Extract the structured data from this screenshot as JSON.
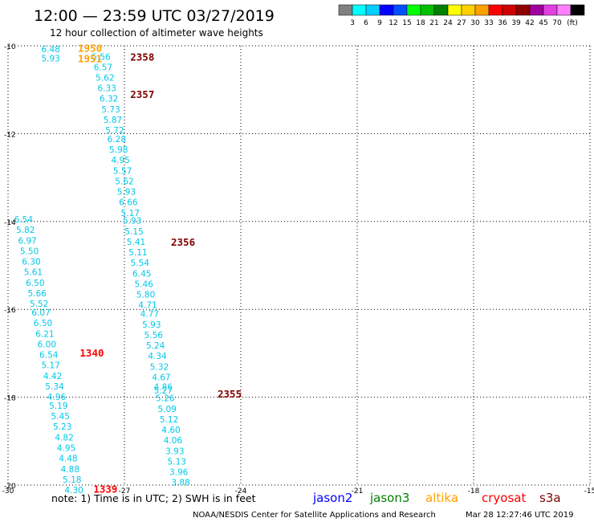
{
  "header": {
    "title": "12:00 — 23:59 UTC 03/27/2019",
    "subtitle": "12 hour collection of altimeter wave heights"
  },
  "colorbar": {
    "colors": [
      "#808080",
      "#00ffff",
      "#00d0ff",
      "#0000ff",
      "#0050ff",
      "#00ff00",
      "#00c000",
      "#008000",
      "#ffff00",
      "#ffd000",
      "#ffa000",
      "#ff0000",
      "#d00000",
      "#900000",
      "#a000a0",
      "#e040e0",
      "#ff80ff",
      "#000000"
    ],
    "labels": [
      "3",
      "6",
      "9",
      "12",
      "15",
      "18",
      "21",
      "24",
      "27",
      "30",
      "33",
      "36",
      "39",
      "42",
      "45",
      "70"
    ],
    "unit": "(ft)"
  },
  "footer": {
    "note": "note:  1) Time is in UTC;  2) SWH is in feet",
    "credit": "NOAA/NESDIS Center for Satellite Applications and Research",
    "timestamp": "Mar 28 12:27:46 UTC 2019",
    "satellites": [
      {
        "name": "jason2",
        "color": "#0000ff"
      },
      {
        "name": "jason3",
        "color": "#008000"
      },
      {
        "name": "altika",
        "color": "#ffa000"
      },
      {
        "name": "cryosat",
        "color": "#ff0000"
      },
      {
        "name": "s3a",
        "color": "#800000"
      }
    ]
  },
  "chart_data": {
    "type": "scatter",
    "title": "12:00 — 23:59 UTC 03/27/2019",
    "subtitle": "12 hour collection of altimeter wave heights",
    "xlabel": "",
    "ylabel": "",
    "xlim": [
      -30,
      -15
    ],
    "ylim": [
      -20,
      -10
    ],
    "x_ticks": [
      -30,
      -27,
      -24,
      -21,
      -18,
      -15
    ],
    "y_ticks": [
      -10,
      -12,
      -14,
      -16,
      -18,
      -20
    ],
    "grid": true,
    "value_color": "#00c8e8",
    "tracks": [
      {
        "lon": -28.9,
        "lat": -10.07,
        "swh": "6.48"
      },
      {
        "lon": -28.9,
        "lat": -10.28,
        "swh": "5.93"
      },
      {
        "lon": -27.6,
        "lat": -10.25,
        "swh": "5.56"
      },
      {
        "lon": -27.55,
        "lat": -10.48,
        "swh": "6.57"
      },
      {
        "lon": -27.5,
        "lat": -10.72,
        "swh": "5.62"
      },
      {
        "lon": -27.45,
        "lat": -10.96,
        "swh": "6.33"
      },
      {
        "lon": -27.4,
        "lat": -11.2,
        "swh": "6.32"
      },
      {
        "lon": -27.35,
        "lat": -11.44,
        "swh": "5.73"
      },
      {
        "lon": -27.3,
        "lat": -11.68,
        "swh": "5.87"
      },
      {
        "lon": -27.25,
        "lat": -11.92,
        "swh": "5.72"
      },
      {
        "lon": -27.2,
        "lat": -12.12,
        "swh": "6.28"
      },
      {
        "lon": -27.15,
        "lat": -12.36,
        "swh": "5.98"
      },
      {
        "lon": -27.1,
        "lat": -12.6,
        "swh": "4.95"
      },
      {
        "lon": -27.05,
        "lat": -12.84,
        "swh": "5.57"
      },
      {
        "lon": -27.0,
        "lat": -13.08,
        "swh": "5.62"
      },
      {
        "lon": -26.95,
        "lat": -13.32,
        "swh": "5.93"
      },
      {
        "lon": -26.9,
        "lat": -13.56,
        "swh": "6.66"
      },
      {
        "lon": -26.85,
        "lat": -13.8,
        "swh": "5.17"
      },
      {
        "lon": -26.8,
        "lat": -13.98,
        "swh": "5.93"
      },
      {
        "lon": -26.75,
        "lat": -14.22,
        "swh": "5.15"
      },
      {
        "lon": -26.7,
        "lat": -14.46,
        "swh": "5.41"
      },
      {
        "lon": -26.65,
        "lat": -14.7,
        "swh": "5.11"
      },
      {
        "lon": -26.6,
        "lat": -14.94,
        "swh": "5.54"
      },
      {
        "lon": -26.55,
        "lat": -15.18,
        "swh": "6.45"
      },
      {
        "lon": -26.5,
        "lat": -15.42,
        "swh": "5.46"
      },
      {
        "lon": -26.45,
        "lat": -15.66,
        "swh": "5.80"
      },
      {
        "lon": -26.4,
        "lat": -15.9,
        "swh": "4.71"
      },
      {
        "lon": -26.35,
        "lat": -16.1,
        "swh": "4.77"
      },
      {
        "lon": -26.3,
        "lat": -16.34,
        "swh": "5.93"
      },
      {
        "lon": -26.25,
        "lat": -16.58,
        "swh": "5.56"
      },
      {
        "lon": -26.2,
        "lat": -16.82,
        "swh": "5.24"
      },
      {
        "lon": -26.15,
        "lat": -17.06,
        "swh": "4.34"
      },
      {
        "lon": -26.1,
        "lat": -17.3,
        "swh": "5.32"
      },
      {
        "lon": -26.05,
        "lat": -17.54,
        "swh": "4.67"
      },
      {
        "lon": -26.0,
        "lat": -17.76,
        "swh": "4.86"
      },
      {
        "lon": -26.0,
        "lat": -17.84,
        "swh": "5.27"
      },
      {
        "lon": -25.95,
        "lat": -18.02,
        "swh": "5.26"
      },
      {
        "lon": -25.9,
        "lat": -18.26,
        "swh": "5.09"
      },
      {
        "lon": -25.85,
        "lat": -18.5,
        "swh": "5.12"
      },
      {
        "lon": -25.8,
        "lat": -18.74,
        "swh": "4.60"
      },
      {
        "lon": -25.75,
        "lat": -18.98,
        "swh": "4.06"
      },
      {
        "lon": -25.7,
        "lat": -19.22,
        "swh": "3.93"
      },
      {
        "lon": -25.65,
        "lat": -19.46,
        "swh": "5.13"
      },
      {
        "lon": -25.6,
        "lat": -19.7,
        "swh": "3.96"
      },
      {
        "lon": -25.55,
        "lat": -19.94,
        "swh": "3.88"
      },
      {
        "lon": -29.6,
        "lat": -13.95,
        "swh": "6.54"
      },
      {
        "lon": -29.55,
        "lat": -14.19,
        "swh": "5.82"
      },
      {
        "lon": -29.5,
        "lat": -14.43,
        "swh": "6.97"
      },
      {
        "lon": -29.45,
        "lat": -14.67,
        "swh": "5.50"
      },
      {
        "lon": -29.4,
        "lat": -14.91,
        "swh": "6.30"
      },
      {
        "lon": -29.35,
        "lat": -15.15,
        "swh": "5.61"
      },
      {
        "lon": -29.3,
        "lat": -15.39,
        "swh": "6.50"
      },
      {
        "lon": -29.25,
        "lat": -15.63,
        "swh": "5.66"
      },
      {
        "lon": -29.2,
        "lat": -15.87,
        "swh": "5.52"
      },
      {
        "lon": -29.15,
        "lat": -16.07,
        "swh": "6.07"
      },
      {
        "lon": -29.1,
        "lat": -16.31,
        "swh": "6.50"
      },
      {
        "lon": -29.05,
        "lat": -16.55,
        "swh": "6.21"
      },
      {
        "lon": -29.0,
        "lat": -16.79,
        "swh": "6.00"
      },
      {
        "lon": -28.95,
        "lat": -17.03,
        "swh": "6.54"
      },
      {
        "lon": -28.9,
        "lat": -17.27,
        "swh": "5.17"
      },
      {
        "lon": -28.85,
        "lat": -17.51,
        "swh": "4.42"
      },
      {
        "lon": -28.8,
        "lat": -17.75,
        "swh": "5.34"
      },
      {
        "lon": -28.75,
        "lat": -17.99,
        "swh": "4.96"
      },
      {
        "lon": -28.7,
        "lat": -18.19,
        "swh": "5.19"
      },
      {
        "lon": -28.65,
        "lat": -18.43,
        "swh": "5.45"
      },
      {
        "lon": -28.6,
        "lat": -18.67,
        "swh": "5.23"
      },
      {
        "lon": -28.55,
        "lat": -18.91,
        "swh": "4.82"
      },
      {
        "lon": -28.5,
        "lat": -19.15,
        "swh": "4.95"
      },
      {
        "lon": -28.45,
        "lat": -19.39,
        "swh": "4.48"
      },
      {
        "lon": -28.4,
        "lat": -19.63,
        "swh": "4.88"
      },
      {
        "lon": -28.35,
        "lat": -19.87,
        "swh": "5.18"
      },
      {
        "lon": -28.3,
        "lat": -20.11,
        "swh": "4.30"
      }
    ],
    "time_labels": [
      {
        "lon": -28.2,
        "lat": -10.05,
        "text": "1950",
        "color": "#ffa000"
      },
      {
        "lon": -28.2,
        "lat": -10.28,
        "text": "1951",
        "color": "#ffa000"
      },
      {
        "lon": -26.85,
        "lat": -10.25,
        "text": "2358",
        "color": "#800000"
      },
      {
        "lon": -26.85,
        "lat": -11.1,
        "text": "2357",
        "color": "#800000"
      },
      {
        "lon": -25.8,
        "lat": -14.46,
        "text": "2356",
        "color": "#800000"
      },
      {
        "lon": -24.6,
        "lat": -17.92,
        "text": "2355",
        "color": "#800000"
      },
      {
        "lon": -28.15,
        "lat": -16.98,
        "text": "1340",
        "color": "#ff0000"
      },
      {
        "lon": -27.8,
        "lat": -20.08,
        "text": "1339",
        "color": "#ff0000"
      }
    ]
  }
}
